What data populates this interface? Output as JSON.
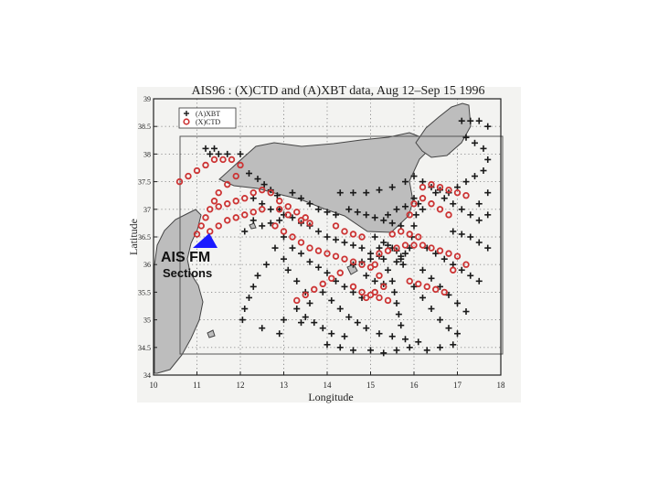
{
  "annotation": {
    "title": "AIS FM",
    "subtitle": "Sections",
    "arrow_color": "#1a1aff",
    "arrow_icon": "blue-triangle"
  },
  "colors": {
    "xbt": "#1a1a1a",
    "ctd": "#cc3333",
    "land": "#bdbdbd",
    "frame": "#333333"
  },
  "chart_data": {
    "type": "scatter",
    "title": "AIS96 : (X)CTD and (A)XBT data, Aug 12–Sep 15 1996",
    "xlabel": "Longitude",
    "ylabel": "Latitude",
    "xlim": [
      10,
      18
    ],
    "ylim": [
      34,
      39
    ],
    "xticks": [
      "10",
      "11",
      "12",
      "13",
      "14",
      "15",
      "16",
      "17",
      "18"
    ],
    "yticks": [
      "34",
      "34.5",
      "35",
      "35.5",
      "36",
      "36.5",
      "37",
      "37.5",
      "38",
      "38.5",
      "39"
    ],
    "grid": true,
    "legend_position": "top-left",
    "legend": [
      "(A)XBT",
      "(X)CTD"
    ],
    "series": [
      {
        "name": "(A)XBT",
        "marker": "plus",
        "color": "#1a1a1a",
        "points": [
          [
            11.3,
            38.0
          ],
          [
            11.5,
            38.0
          ],
          [
            11.7,
            38.0
          ],
          [
            12.0,
            38.0
          ],
          [
            11.2,
            38.1
          ],
          [
            11.4,
            38.1
          ],
          [
            12.2,
            37.65
          ],
          [
            12.4,
            37.55
          ],
          [
            12.55,
            37.45
          ],
          [
            12.7,
            37.35
          ],
          [
            12.85,
            37.25
          ],
          [
            12.9,
            37.0
          ],
          [
            13.0,
            36.9
          ],
          [
            13.2,
            36.85
          ],
          [
            13.4,
            36.75
          ],
          [
            13.6,
            36.7
          ],
          [
            13.8,
            36.6
          ],
          [
            14.0,
            36.5
          ],
          [
            14.2,
            36.45
          ],
          [
            14.4,
            36.4
          ],
          [
            14.6,
            36.35
          ],
          [
            14.8,
            36.3
          ],
          [
            15.0,
            36.2
          ],
          [
            15.2,
            36.15
          ],
          [
            12.3,
            37.2
          ],
          [
            12.5,
            37.1
          ],
          [
            12.7,
            37.0
          ],
          [
            12.3,
            36.8
          ],
          [
            12.1,
            36.6
          ],
          [
            12.5,
            36.7
          ],
          [
            12.7,
            36.75
          ],
          [
            12.9,
            36.8
          ],
          [
            13.0,
            36.5
          ],
          [
            13.2,
            36.3
          ],
          [
            13.4,
            36.2
          ],
          [
            13.6,
            36.05
          ],
          [
            13.8,
            35.95
          ],
          [
            14.0,
            35.85
          ],
          [
            14.2,
            35.7
          ],
          [
            14.4,
            35.6
          ],
          [
            14.6,
            35.5
          ],
          [
            14.8,
            35.4
          ],
          [
            12.8,
            36.3
          ],
          [
            13.0,
            36.1
          ],
          [
            13.1,
            35.9
          ],
          [
            13.3,
            35.7
          ],
          [
            13.5,
            35.5
          ],
          [
            13.6,
            35.3
          ],
          [
            12.6,
            36.0
          ],
          [
            12.4,
            35.8
          ],
          [
            12.3,
            35.6
          ],
          [
            12.2,
            35.4
          ],
          [
            12.1,
            35.2
          ],
          [
            12.05,
            35.0
          ],
          [
            13.9,
            35.5
          ],
          [
            14.1,
            35.35
          ],
          [
            14.3,
            35.2
          ],
          [
            14.5,
            35.05
          ],
          [
            14.7,
            34.95
          ],
          [
            14.9,
            34.85
          ],
          [
            15.2,
            34.75
          ],
          [
            15.5,
            34.7
          ],
          [
            15.8,
            34.65
          ],
          [
            16.1,
            34.6
          ],
          [
            13.3,
            35.2
          ],
          [
            13.5,
            35.05
          ],
          [
            13.7,
            34.95
          ],
          [
            13.9,
            34.85
          ],
          [
            14.1,
            34.75
          ],
          [
            14.4,
            34.7
          ],
          [
            15.1,
            36.5
          ],
          [
            15.2,
            36.3
          ],
          [
            15.3,
            36.1
          ],
          [
            15.4,
            35.9
          ],
          [
            15.5,
            35.7
          ],
          [
            15.55,
            35.5
          ],
          [
            15.6,
            35.3
          ],
          [
            15.65,
            35.1
          ],
          [
            15.7,
            34.9
          ],
          [
            15.6,
            36.05
          ],
          [
            15.7,
            36.1
          ],
          [
            15.8,
            36.2
          ],
          [
            15.9,
            36.3
          ],
          [
            15.95,
            36.5
          ],
          [
            16.0,
            36.7
          ],
          [
            16.05,
            36.9
          ],
          [
            16.1,
            37.1
          ],
          [
            16.3,
            36.3
          ],
          [
            16.5,
            36.2
          ],
          [
            16.7,
            36.1
          ],
          [
            16.9,
            36.0
          ],
          [
            17.1,
            35.9
          ],
          [
            17.3,
            35.8
          ],
          [
            17.5,
            35.7
          ],
          [
            16.2,
            35.9
          ],
          [
            16.4,
            35.75
          ],
          [
            16.6,
            35.6
          ],
          [
            16.8,
            35.45
          ],
          [
            17.0,
            35.3
          ],
          [
            17.2,
            35.15
          ],
          [
            16.0,
            35.6
          ],
          [
            16.2,
            35.4
          ],
          [
            16.4,
            35.2
          ],
          [
            16.6,
            35.0
          ],
          [
            16.8,
            34.85
          ],
          [
            17.0,
            34.75
          ],
          [
            16.5,
            37.3
          ],
          [
            16.7,
            37.2
          ],
          [
            16.9,
            37.1
          ],
          [
            17.1,
            37.0
          ],
          [
            17.3,
            36.9
          ],
          [
            17.5,
            36.8
          ],
          [
            16.2,
            37.5
          ],
          [
            16.4,
            37.4
          ],
          [
            16.6,
            37.35
          ],
          [
            16.8,
            37.3
          ],
          [
            17.0,
            37.4
          ],
          [
            17.2,
            37.5
          ],
          [
            17.1,
            38.6
          ],
          [
            17.3,
            38.6
          ],
          [
            17.5,
            38.6
          ],
          [
            17.7,
            38.5
          ],
          [
            17.2,
            38.3
          ],
          [
            17.4,
            38.2
          ],
          [
            17.6,
            38.1
          ],
          [
            17.7,
            37.9
          ],
          [
            17.6,
            37.7
          ],
          [
            17.4,
            37.6
          ],
          [
            17.7,
            37.3
          ],
          [
            17.5,
            37.1
          ],
          [
            17.7,
            36.9
          ],
          [
            14.5,
            37.0
          ],
          [
            14.7,
            36.95
          ],
          [
            14.9,
            36.9
          ],
          [
            15.1,
            36.85
          ],
          [
            15.3,
            36.8
          ],
          [
            15.5,
            36.75
          ],
          [
            15.7,
            36.7
          ],
          [
            14.3,
            37.3
          ],
          [
            14.6,
            37.3
          ],
          [
            14.9,
            37.3
          ],
          [
            15.2,
            37.35
          ],
          [
            15.5,
            37.4
          ],
          [
            15.8,
            37.5
          ],
          [
            16.0,
            37.6
          ],
          [
            13.2,
            37.3
          ],
          [
            13.4,
            37.2
          ],
          [
            13.6,
            37.1
          ],
          [
            13.8,
            37.0
          ],
          [
            14.0,
            36.95
          ],
          [
            14.2,
            36.9
          ],
          [
            15.3,
            36.4
          ],
          [
            15.4,
            36.35
          ],
          [
            15.5,
            36.3
          ],
          [
            15.6,
            36.25
          ],
          [
            15.7,
            36.15
          ],
          [
            15.75,
            36.0
          ],
          [
            14.6,
            36.0
          ],
          [
            14.8,
            36.05
          ],
          [
            15.0,
            36.1
          ],
          [
            14.9,
            35.8
          ],
          [
            15.1,
            35.7
          ],
          [
            15.3,
            35.65
          ],
          [
            16.9,
            36.6
          ],
          [
            17.1,
            36.55
          ],
          [
            17.3,
            36.5
          ],
          [
            17.5,
            36.4
          ],
          [
            17.7,
            36.3
          ],
          [
            13.0,
            35.0
          ],
          [
            13.4,
            34.95
          ],
          [
            12.5,
            34.85
          ],
          [
            12.9,
            34.75
          ],
          [
            14.0,
            34.55
          ],
          [
            14.3,
            34.5
          ],
          [
            14.6,
            34.45
          ],
          [
            15.0,
            34.45
          ],
          [
            15.3,
            34.4
          ],
          [
            15.6,
            34.45
          ],
          [
            15.9,
            34.5
          ],
          [
            16.3,
            34.45
          ],
          [
            16.6,
            34.5
          ],
          [
            16.9,
            34.55
          ],
          [
            15.4,
            36.9
          ],
          [
            15.6,
            37.0
          ],
          [
            15.8,
            37.05
          ],
          [
            16.0,
            37.2
          ],
          [
            16.2,
            37.0
          ]
        ]
      },
      {
        "name": "(X)CTD",
        "marker": "circle",
        "color": "#cc3333",
        "points": [
          [
            10.6,
            37.5
          ],
          [
            10.8,
            37.6
          ],
          [
            11.0,
            37.7
          ],
          [
            11.2,
            37.8
          ],
          [
            11.4,
            37.9
          ],
          [
            11.6,
            37.9
          ],
          [
            11.8,
            37.9
          ],
          [
            12.0,
            37.8
          ],
          [
            11.9,
            37.6
          ],
          [
            11.7,
            37.45
          ],
          [
            11.5,
            37.3
          ],
          [
            11.4,
            37.15
          ],
          [
            11.3,
            37.0
          ],
          [
            11.2,
            36.85
          ],
          [
            11.1,
            36.7
          ],
          [
            11.0,
            36.55
          ],
          [
            11.3,
            36.6
          ],
          [
            11.5,
            36.7
          ],
          [
            11.7,
            36.8
          ],
          [
            11.9,
            36.85
          ],
          [
            12.1,
            36.9
          ],
          [
            12.3,
            36.95
          ],
          [
            12.5,
            37.0
          ],
          [
            11.5,
            37.05
          ],
          [
            11.7,
            37.1
          ],
          [
            11.9,
            37.15
          ],
          [
            12.1,
            37.2
          ],
          [
            12.3,
            37.3
          ],
          [
            12.5,
            37.35
          ],
          [
            12.7,
            37.3
          ],
          [
            12.9,
            37.15
          ],
          [
            13.1,
            37.05
          ],
          [
            13.3,
            36.95
          ],
          [
            13.5,
            36.85
          ],
          [
            12.8,
            36.7
          ],
          [
            13.0,
            36.6
          ],
          [
            13.2,
            36.5
          ],
          [
            13.4,
            36.4
          ],
          [
            13.6,
            36.3
          ],
          [
            13.8,
            36.25
          ],
          [
            14.0,
            36.2
          ],
          [
            14.2,
            36.15
          ],
          [
            14.4,
            36.1
          ],
          [
            14.6,
            36.05
          ],
          [
            14.8,
            36.0
          ],
          [
            15.0,
            35.95
          ],
          [
            13.3,
            35.35
          ],
          [
            13.5,
            35.45
          ],
          [
            13.7,
            35.55
          ],
          [
            13.9,
            35.65
          ],
          [
            14.1,
            35.75
          ],
          [
            14.3,
            35.85
          ],
          [
            15.2,
            36.2
          ],
          [
            15.4,
            36.25
          ],
          [
            15.6,
            36.3
          ],
          [
            15.8,
            36.35
          ],
          [
            16.0,
            36.35
          ],
          [
            16.2,
            36.35
          ],
          [
            16.4,
            36.3
          ],
          [
            16.6,
            36.25
          ],
          [
            16.8,
            36.2
          ],
          [
            17.0,
            36.15
          ],
          [
            15.1,
            36.0
          ],
          [
            15.2,
            35.8
          ],
          [
            15.3,
            35.6
          ],
          [
            15.1,
            35.5
          ],
          [
            14.9,
            35.4
          ],
          [
            15.9,
            36.9
          ],
          [
            16.0,
            37.1
          ],
          [
            16.2,
            37.2
          ],
          [
            16.4,
            37.1
          ],
          [
            16.6,
            37.0
          ],
          [
            16.8,
            36.9
          ],
          [
            16.2,
            37.4
          ],
          [
            16.4,
            37.45
          ],
          [
            16.6,
            37.4
          ],
          [
            16.8,
            37.35
          ],
          [
            17.0,
            37.3
          ],
          [
            17.2,
            37.25
          ],
          [
            15.5,
            36.55
          ],
          [
            15.7,
            36.6
          ],
          [
            15.9,
            36.55
          ],
          [
            16.1,
            36.5
          ],
          [
            14.6,
            35.6
          ],
          [
            14.8,
            35.5
          ],
          [
            15.0,
            35.45
          ],
          [
            15.2,
            35.4
          ],
          [
            15.4,
            35.35
          ],
          [
            15.9,
            35.7
          ],
          [
            16.1,
            35.65
          ],
          [
            16.3,
            35.6
          ],
          [
            16.5,
            35.55
          ],
          [
            16.7,
            35.5
          ],
          [
            17.2,
            36.0
          ],
          [
            16.9,
            35.9
          ],
          [
            14.2,
            36.7
          ],
          [
            14.4,
            36.6
          ],
          [
            14.6,
            36.55
          ],
          [
            14.8,
            36.5
          ],
          [
            12.9,
            37.0
          ],
          [
            13.1,
            36.9
          ],
          [
            13.4,
            36.8
          ],
          [
            13.6,
            36.75
          ]
        ]
      }
    ]
  }
}
